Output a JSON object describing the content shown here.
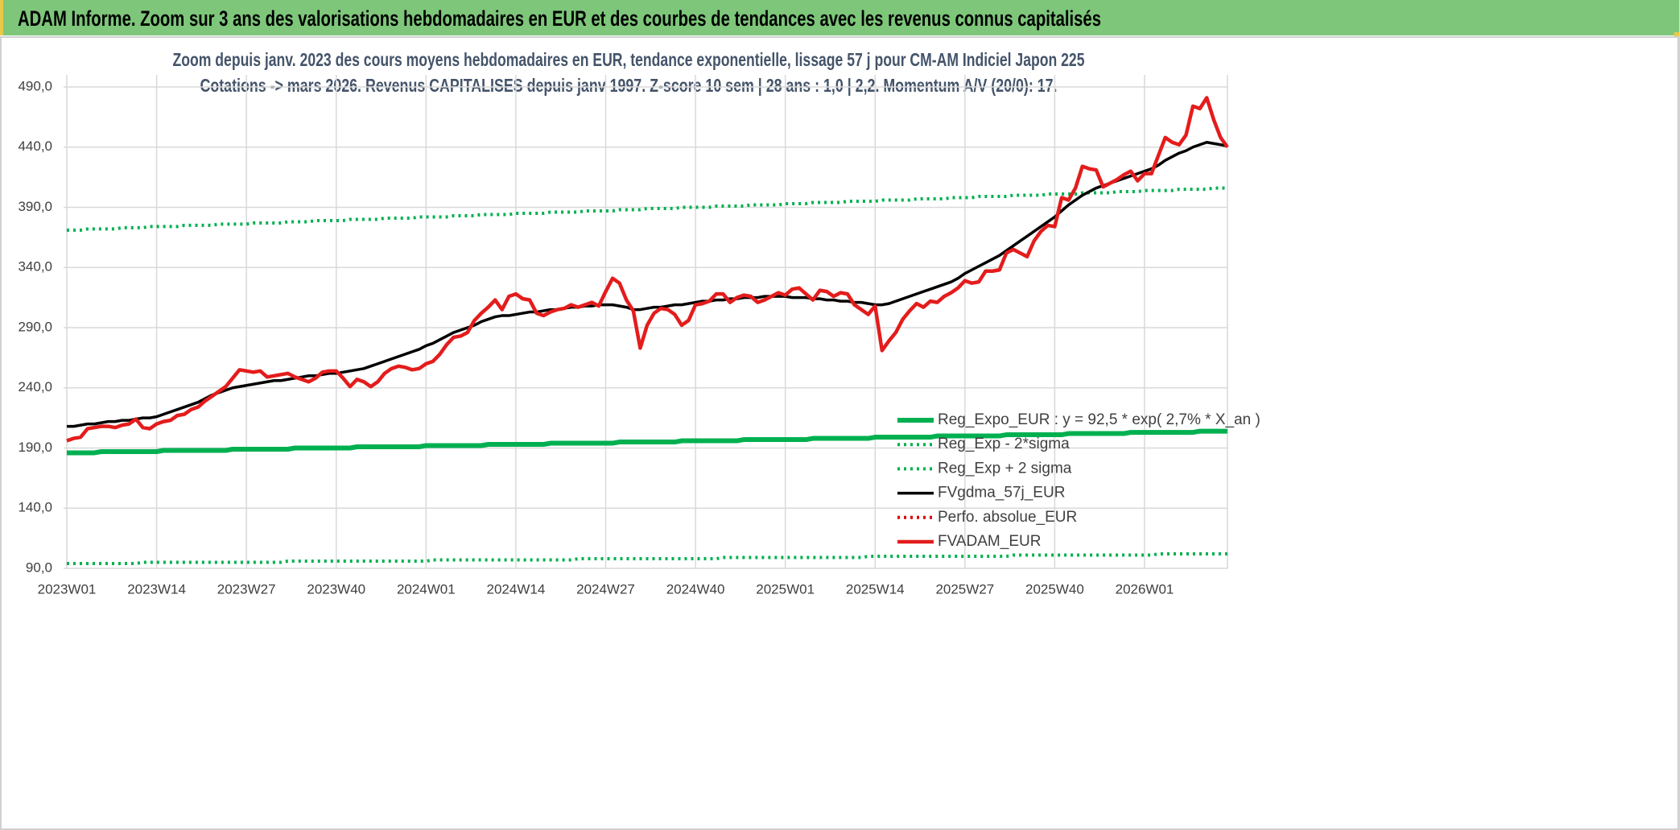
{
  "header": {
    "title": "ADAM Informe. Zoom sur 3 ans des valorisations hebdomadaires en EUR et des courbes de tendances avec les revenus connus capitalisés"
  },
  "chart_data": {
    "type": "line",
    "title": "Zoom depuis janv. 2023 des cours moyens hebdomadaires en EUR, tendance exponentielle, lissage 57 j pour CM-AM Indiciel Japon 225",
    "subtitle": "Cotations -> mars 2026. Revenus CAPITALISES depuis janv 1997. Z-score 10 sem | 28 ans : 1,0 | 2,2. Momentum A/V (20/0): 17.",
    "categories": [
      "2023W01",
      null,
      null,
      null,
      null,
      null,
      null,
      null,
      null,
      null,
      null,
      null,
      null,
      "2023W14",
      null,
      null,
      null,
      null,
      null,
      null,
      null,
      null,
      null,
      null,
      null,
      null,
      "2023W27",
      null,
      null,
      null,
      null,
      null,
      null,
      null,
      null,
      null,
      null,
      null,
      null,
      "2023W40",
      null,
      null,
      null,
      null,
      null,
      null,
      null,
      null,
      null,
      null,
      null,
      null,
      "2024W01",
      null,
      null,
      null,
      null,
      null,
      null,
      null,
      null,
      null,
      null,
      null,
      null,
      "2024W14",
      null,
      null,
      null,
      null,
      null,
      null,
      null,
      null,
      null,
      null,
      null,
      null,
      "2024W27",
      null,
      null,
      null,
      null,
      null,
      null,
      null,
      null,
      null,
      null,
      null,
      null,
      "2024W40",
      null,
      null,
      null,
      null,
      null,
      null,
      null,
      null,
      null,
      null,
      null,
      null,
      "2025W01",
      null,
      null,
      null,
      null,
      null,
      null,
      null,
      null,
      null,
      null,
      null,
      null,
      "2025W14",
      null,
      null,
      null,
      null,
      null,
      null,
      null,
      null,
      null,
      null,
      null,
      null,
      "2025W27",
      null,
      null,
      null,
      null,
      null,
      null,
      null,
      null,
      null,
      null,
      null,
      null,
      "2025W40",
      null,
      null,
      null,
      null,
      null,
      null,
      null,
      null,
      null,
      null,
      null,
      null,
      "2026W01",
      null,
      null,
      null,
      null,
      null,
      null,
      null,
      null,
      null,
      null,
      null,
      null
    ],
    "ylim": [
      90,
      490
    ],
    "yticks": [
      {
        "value": 90,
        "label": "90,0"
      },
      {
        "value": 140,
        "label": "140,0"
      },
      {
        "value": 190,
        "label": "190,0"
      },
      {
        "value": 240,
        "label": "240,0"
      },
      {
        "value": 290,
        "label": "290,0"
      },
      {
        "value": 340,
        "label": "340,0"
      },
      {
        "value": 390,
        "label": "390,0"
      },
      {
        "value": 440,
        "label": "440,0"
      },
      {
        "value": 490,
        "label": "490,0"
      }
    ],
    "grid": true,
    "legend": "lower right",
    "series": [
      {
        "name": "Reg_Expo_EUR : y = 92,5 * exp( 2,7% *  X_an )",
        "color": "#00b050",
        "line_style": "solid",
        "thick": true,
        "values": [
          186,
          186,
          186,
          186,
          186,
          187,
          187,
          187,
          187,
          187,
          187,
          187,
          187,
          187,
          188,
          188,
          188,
          188,
          188,
          188,
          188,
          188,
          188,
          188,
          189,
          189,
          189,
          189,
          189,
          189,
          189,
          189,
          189,
          190,
          190,
          190,
          190,
          190,
          190,
          190,
          190,
          190,
          191,
          191,
          191,
          191,
          191,
          191,
          191,
          191,
          191,
          191,
          192,
          192,
          192,
          192,
          192,
          192,
          192,
          192,
          192,
          193,
          193,
          193,
          193,
          193,
          193,
          193,
          193,
          193,
          194,
          194,
          194,
          194,
          194,
          194,
          194,
          194,
          194,
          194,
          195,
          195,
          195,
          195,
          195,
          195,
          195,
          195,
          195,
          196,
          196,
          196,
          196,
          196,
          196,
          196,
          196,
          196,
          197,
          197,
          197,
          197,
          197,
          197,
          197,
          197,
          197,
          197,
          198,
          198,
          198,
          198,
          198,
          198,
          198,
          198,
          198,
          199,
          199,
          199,
          199,
          199,
          199,
          199,
          199,
          199,
          200,
          200,
          200,
          200,
          200,
          200,
          200,
          200,
          200,
          200,
          201,
          201,
          201,
          201,
          201,
          201,
          201,
          201,
          201,
          202,
          202,
          202,
          202,
          202,
          202,
          202,
          202,
          202,
          203,
          203,
          203,
          203,
          203,
          203,
          203,
          203,
          203,
          203,
          204,
          204,
          204,
          204,
          204
        ]
      },
      {
        "name": "Reg_Exp - 2*sigma",
        "color": "#00b050",
        "line_style": "dotted",
        "thick": false,
        "values": [
          94,
          94,
          94,
          94,
          94,
          94,
          94,
          94,
          94,
          94,
          94,
          95,
          95,
          95,
          95,
          95,
          95,
          95,
          95,
          95,
          95,
          95,
          95,
          95,
          95,
          95,
          95,
          95,
          95,
          95,
          95,
          95,
          96,
          96,
          96,
          96,
          96,
          96,
          96,
          96,
          96,
          96,
          96,
          96,
          96,
          96,
          96,
          96,
          96,
          96,
          96,
          96,
          96,
          97,
          97,
          97,
          97,
          97,
          97,
          97,
          97,
          97,
          97,
          97,
          97,
          97,
          97,
          97,
          97,
          97,
          97,
          97,
          97,
          97,
          98,
          98,
          98,
          98,
          98,
          98,
          98,
          98,
          98,
          98,
          98,
          98,
          98,
          98,
          98,
          98,
          98,
          98,
          98,
          98,
          98,
          99,
          99,
          99,
          99,
          99,
          99,
          99,
          99,
          99,
          99,
          99,
          99,
          99,
          99,
          99,
          99,
          99,
          99,
          99,
          99,
          99,
          100,
          100,
          100,
          100,
          100,
          100,
          100,
          100,
          100,
          100,
          100,
          100,
          100,
          100,
          100,
          100,
          100,
          100,
          100,
          100,
          100,
          101,
          101,
          101,
          101,
          101,
          101,
          101,
          101,
          101,
          101,
          101,
          101,
          101,
          101,
          101,
          101,
          101,
          101,
          101,
          101,
          101,
          102,
          102,
          102,
          102,
          102,
          102,
          102,
          102,
          102,
          102,
          102
        ]
      },
      {
        "name": "Reg_Exp + 2 sigma",
        "color": "#00b050",
        "line_style": "dotted",
        "thick": false,
        "values": [
          371,
          371,
          371,
          372,
          372,
          372,
          372,
          372,
          373,
          373,
          373,
          373,
          374,
          374,
          374,
          374,
          374,
          375,
          375,
          375,
          375,
          375,
          376,
          376,
          376,
          376,
          376,
          377,
          377,
          377,
          377,
          377,
          378,
          378,
          378,
          378,
          379,
          379,
          379,
          379,
          379,
          380,
          380,
          380,
          380,
          380,
          381,
          381,
          381,
          381,
          381,
          382,
          382,
          382,
          382,
          382,
          383,
          383,
          383,
          383,
          384,
          384,
          384,
          384,
          384,
          385,
          385,
          385,
          385,
          385,
          386,
          386,
          386,
          386,
          386,
          387,
          387,
          387,
          387,
          387,
          388,
          388,
          388,
          388,
          389,
          389,
          389,
          389,
          389,
          390,
          390,
          390,
          390,
          390,
          391,
          391,
          391,
          391,
          391,
          392,
          392,
          392,
          392,
          392,
          393,
          393,
          393,
          393,
          394,
          394,
          394,
          394,
          394,
          395,
          395,
          395,
          395,
          395,
          396,
          396,
          396,
          396,
          396,
          397,
          397,
          397,
          397,
          397,
          398,
          398,
          398,
          398,
          399,
          399,
          399,
          399,
          399,
          400,
          400,
          400,
          400,
          400,
          401,
          401,
          401,
          401,
          401,
          402,
          402,
          402,
          402,
          402,
          403,
          403,
          403,
          403,
          404,
          404,
          404,
          404,
          404,
          405,
          405,
          405,
          405,
          405,
          406,
          406,
          406
        ]
      },
      {
        "name": "FVgdma_57j_EUR",
        "color": "#000000",
        "line_style": "solid",
        "thick": false,
        "values": [
          208,
          208,
          209,
          210,
          210,
          211,
          212,
          212,
          213,
          213,
          214,
          215,
          215,
          216,
          218,
          220,
          222,
          224,
          226,
          228,
          231,
          234,
          236,
          238,
          240,
          241,
          242,
          243,
          244,
          245,
          246,
          246,
          247,
          248,
          249,
          250,
          250,
          251,
          252,
          252,
          253,
          254,
          255,
          256,
          258,
          260,
          262,
          264,
          266,
          268,
          270,
          272,
          275,
          277,
          280,
          283,
          286,
          288,
          290,
          292,
          295,
          297,
          299,
          300,
          300,
          301,
          302,
          303,
          303,
          304,
          305,
          305,
          306,
          307,
          307,
          308,
          308,
          309,
          309,
          309,
          308,
          307,
          305,
          305,
          306,
          307,
          307,
          308,
          309,
          309,
          310,
          311,
          312,
          312,
          313,
          313,
          314,
          314,
          315,
          315,
          315,
          316,
          316,
          316,
          316,
          315,
          315,
          315,
          314,
          314,
          313,
          313,
          312,
          312,
          311,
          311,
          310,
          309,
          309,
          310,
          312,
          314,
          316,
          318,
          320,
          322,
          324,
          326,
          328,
          331,
          335,
          338,
          341,
          344,
          347,
          350,
          354,
          358,
          362,
          366,
          370,
          374,
          378,
          382,
          387,
          392,
          396,
          400,
          403,
          406,
          408,
          410,
          412,
          414,
          416,
          418,
          420,
          422,
          425,
          429,
          432,
          435,
          437,
          440,
          442,
          444,
          443,
          442,
          441
        ]
      },
      {
        "name": "Perfo. absolue_EUR",
        "color": "#e00000",
        "line_style": "dotted",
        "thick": false,
        "values": [
          null,
          null,
          null,
          null,
          null,
          null,
          null,
          null,
          null,
          null,
          null,
          null,
          null,
          null,
          null,
          null,
          null,
          null,
          null,
          null,
          null,
          null,
          null,
          null,
          null,
          null,
          null,
          null,
          null,
          null,
          null,
          null,
          null,
          null,
          null,
          null,
          null,
          null,
          null,
          null,
          null,
          null,
          null,
          null,
          null,
          null,
          null,
          null,
          null,
          null,
          null,
          null,
          null,
          null,
          null,
          null,
          null,
          null,
          null,
          null,
          null,
          null,
          null,
          null,
          null,
          null,
          null,
          null,
          null,
          null,
          null,
          null,
          null,
          null,
          null,
          null,
          null,
          null,
          null,
          null,
          null,
          null,
          null,
          null,
          null,
          null,
          null,
          null,
          null,
          null,
          null,
          null,
          null,
          null,
          null,
          null,
          null,
          null,
          null,
          null,
          null,
          null,
          null,
          null,
          null,
          null,
          null,
          null,
          null,
          null,
          null,
          null,
          null,
          null,
          null,
          null,
          null,
          null,
          null,
          null,
          null,
          null,
          null,
          null,
          null,
          null,
          null,
          null,
          null,
          null,
          null,
          null,
          null,
          null,
          null,
          null,
          null,
          null,
          null,
          null,
          null,
          null,
          null,
          null,
          null,
          null,
          null,
          null,
          null,
          null,
          null,
          null,
          null,
          null,
          null,
          null,
          null,
          null,
          null,
          null,
          null,
          null,
          null,
          null,
          null,
          null,
          null,
          null,
          null
        ]
      },
      {
        "name": "FVADAM_EUR",
        "color": "#e41c1c",
        "line_style": "solid",
        "thick": true,
        "values": [
          196,
          198,
          199,
          206,
          207,
          208,
          208,
          207,
          209,
          210,
          214,
          207,
          206,
          210,
          212,
          213,
          217,
          218,
          222,
          224,
          229,
          233,
          237,
          241,
          248,
          255,
          254,
          253,
          254,
          249,
          250,
          251,
          252,
          249,
          247,
          245,
          248,
          253,
          254,
          254,
          248,
          241,
          247,
          245,
          241,
          245,
          252,
          256,
          258,
          257,
          255,
          256,
          260,
          262,
          268,
          276,
          282,
          283,
          286,
          296,
          302,
          307,
          313,
          305,
          316,
          318,
          314,
          313,
          302,
          300,
          303,
          305,
          306,
          309,
          307,
          309,
          311,
          308,
          320,
          331,
          327,
          313,
          304,
          273,
          292,
          302,
          306,
          305,
          301,
          292,
          296,
          309,
          310,
          312,
          318,
          318,
          311,
          315,
          317,
          316,
          311,
          313,
          316,
          319,
          317,
          322,
          323,
          318,
          313,
          321,
          320,
          316,
          319,
          318,
          309,
          305,
          301,
          308,
          271,
          279,
          286,
          297,
          304,
          310,
          307,
          312,
          311,
          316,
          319,
          323,
          329,
          327,
          328,
          337,
          337,
          338,
          352,
          355,
          352,
          349,
          362,
          370,
          375,
          374,
          398,
          396,
          406,
          424,
          422,
          421,
          407,
          410,
          413,
          417,
          420,
          412,
          418,
          418,
          433,
          448,
          444,
          442,
          450,
          474,
          472,
          481,
          463,
          448,
          440
        ]
      }
    ]
  }
}
